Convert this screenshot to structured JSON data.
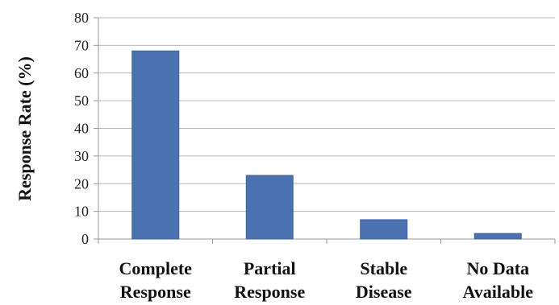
{
  "chart_data": {
    "type": "bar",
    "categories": [
      [
        "Complete",
        "Response"
      ],
      [
        "Partial",
        "Response"
      ],
      [
        "Stable",
        "Disease"
      ],
      [
        "No Data",
        "Available"
      ]
    ],
    "values": [
      68,
      23,
      7,
      2
    ],
    "ylabel": "Response Rate (%)",
    "ylim": [
      0,
      80
    ],
    "yticks": [
      0,
      10,
      20,
      30,
      40,
      50,
      60,
      70,
      80
    ],
    "grid": true,
    "colors": {
      "bar": "#4a72b0"
    }
  }
}
